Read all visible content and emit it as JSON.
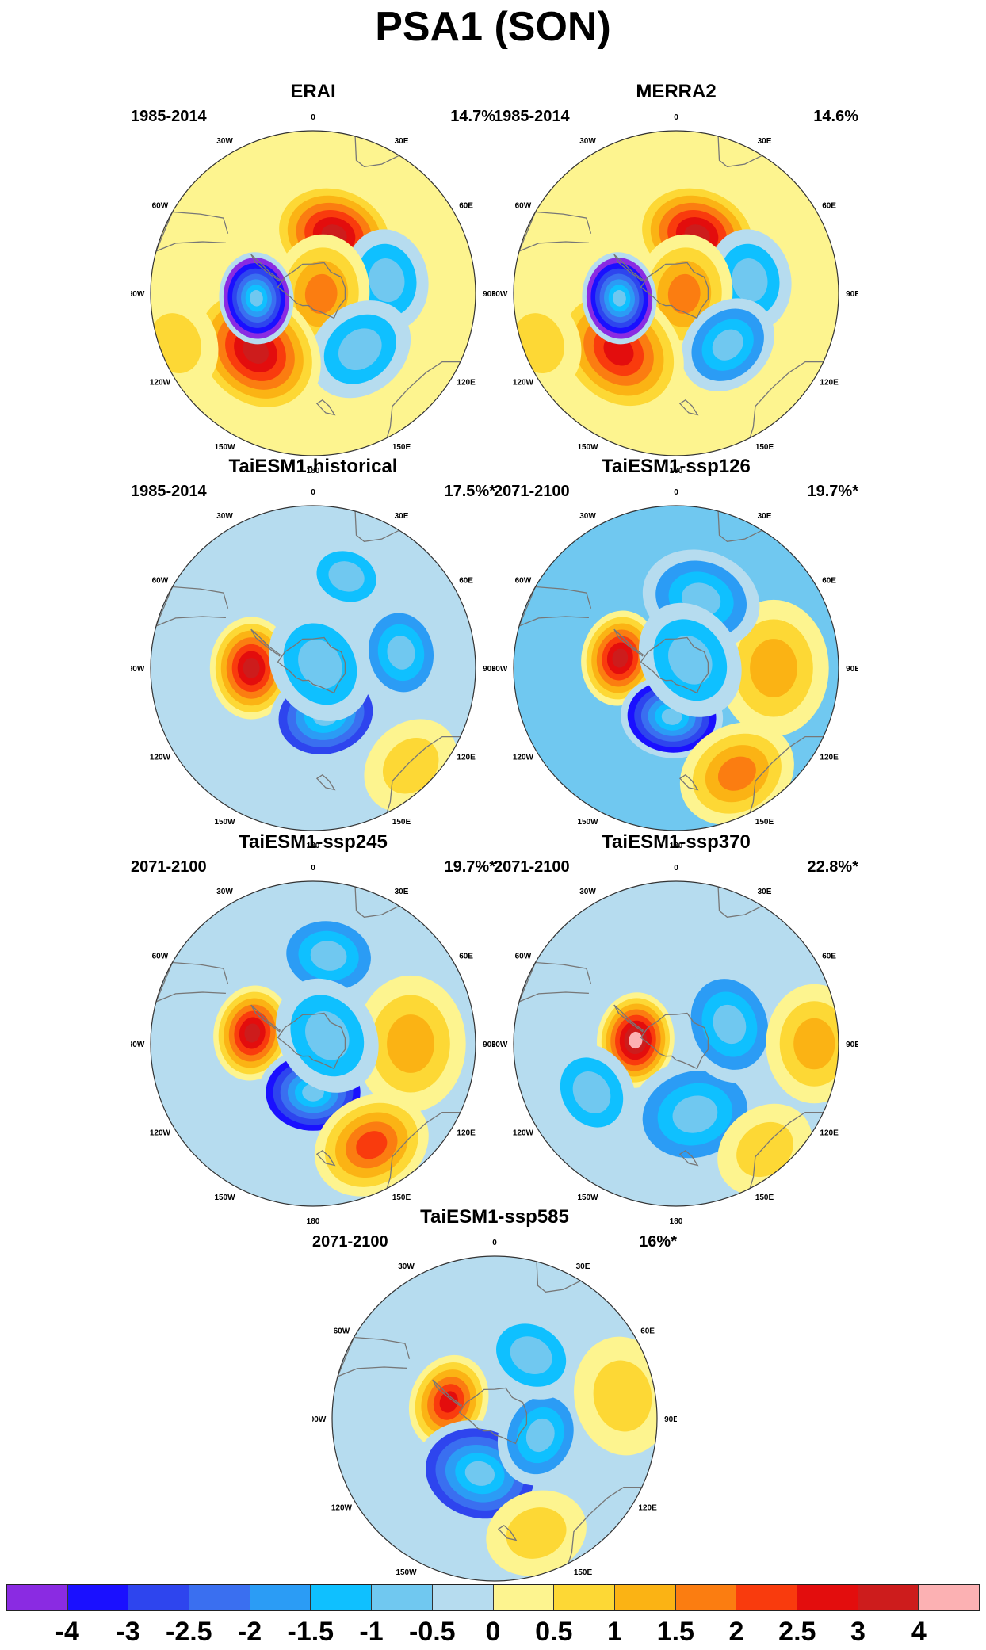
{
  "title": "PSA1 (SON)",
  "longitude_labels": [
    "0",
    "30E",
    "60E",
    "90E",
    "120E",
    "150E",
    "180",
    "150W",
    "120W",
    "90W",
    "60W",
    "30W"
  ],
  "panels": [
    {
      "name": "ERAI",
      "period": "1985-2014",
      "variance": "14.7%",
      "background": 0.3,
      "blobs": [
        {
          "lon": 20,
          "r": 0.38,
          "value": 3.0,
          "size": 0.38
        },
        {
          "lon": 80,
          "r": 0.46,
          "value": -1.2,
          "size": 0.3
        },
        {
          "lon": 95,
          "r": 0.05,
          "value": 1.5,
          "size": 0.35
        },
        {
          "lon": 140,
          "r": 0.45,
          "value": -1.0,
          "size": 0.32
        },
        {
          "lon": 225,
          "r": 0.5,
          "value": 3.0,
          "size": 0.42
        },
        {
          "lon": 265,
          "r": 0.35,
          "value": -4.0,
          "size": 0.27
        },
        {
          "lon": 250,
          "r": 0.9,
          "value": 0.8,
          "size": 0.3
        }
      ]
    },
    {
      "name": "MERRA2",
      "period": "1985-2014",
      "variance": "14.6%",
      "background": 0.3,
      "blobs": [
        {
          "lon": 20,
          "r": 0.38,
          "value": 3.0,
          "size": 0.38
        },
        {
          "lon": 80,
          "r": 0.46,
          "value": -1.2,
          "size": 0.3
        },
        {
          "lon": 95,
          "r": 0.05,
          "value": 1.5,
          "size": 0.35
        },
        {
          "lon": 135,
          "r": 0.45,
          "value": -1.5,
          "size": 0.3
        },
        {
          "lon": 225,
          "r": 0.5,
          "value": 2.5,
          "size": 0.42
        },
        {
          "lon": 265,
          "r": 0.35,
          "value": -4.0,
          "size": 0.27
        },
        {
          "lon": 250,
          "r": 0.9,
          "value": 0.8,
          "size": 0.3
        }
      ]
    },
    {
      "name": "TaiESM1-historical",
      "period": "1985-2014",
      "variance": "17.5%*",
      "background": -0.3,
      "blobs": [
        {
          "lon": 270,
          "r": 0.38,
          "value": 3.5,
          "size": 0.3
        },
        {
          "lon": 165,
          "r": 0.3,
          "value": -2.5,
          "size": 0.33
        },
        {
          "lon": 80,
          "r": 0.55,
          "value": -1.5,
          "size": 0.3
        },
        {
          "lon": 60,
          "r": 0.05,
          "value": -1.3,
          "size": 0.35
        },
        {
          "lon": 135,
          "r": 0.85,
          "value": 0.6,
          "size": 0.3
        },
        {
          "lon": 20,
          "r": 0.6,
          "value": -1.0,
          "size": 0.25
        }
      ]
    },
    {
      "name": "TaiESM1-ssp126",
      "period": "2071-2100",
      "variance": "19.7%*",
      "background": -0.6,
      "blobs": [
        {
          "lon": 280,
          "r": 0.35,
          "value": 3.5,
          "size": 0.28
        },
        {
          "lon": 185,
          "r": 0.3,
          "value": -3.5,
          "size": 0.3
        },
        {
          "lon": 90,
          "r": 0.6,
          "value": 1.2,
          "size": 0.4
        },
        {
          "lon": 150,
          "r": 0.75,
          "value": 1.8,
          "size": 0.35
        },
        {
          "lon": 20,
          "r": 0.45,
          "value": -1.5,
          "size": 0.35
        },
        {
          "lon": 60,
          "r": 0.1,
          "value": -1.3,
          "size": 0.35
        }
      ]
    },
    {
      "name": "TaiESM1-ssp245",
      "period": "2071-2100",
      "variance": "19.7%*",
      "background": -0.4,
      "blobs": [
        {
          "lon": 280,
          "r": 0.38,
          "value": 3.5,
          "size": 0.28
        },
        {
          "lon": 180,
          "r": 0.3,
          "value": -3.5,
          "size": 0.32
        },
        {
          "lon": 90,
          "r": 0.6,
          "value": 1.2,
          "size": 0.4
        },
        {
          "lon": 150,
          "r": 0.72,
          "value": 2.0,
          "size": 0.35
        },
        {
          "lon": 10,
          "r": 0.55,
          "value": -1.5,
          "size": 0.32
        },
        {
          "lon": 60,
          "r": 0.1,
          "value": -1.3,
          "size": 0.35
        }
      ]
    },
    {
      "name": "TaiESM1-ssp370",
      "period": "2071-2100",
      "variance": "22.8%*",
      "background": -0.4,
      "blobs": [
        {
          "lon": 275,
          "r": 0.25,
          "value": 4.0,
          "size": 0.28
        },
        {
          "lon": 165,
          "r": 0.45,
          "value": -1.8,
          "size": 0.4
        },
        {
          "lon": 70,
          "r": 0.35,
          "value": -1.5,
          "size": 0.35
        },
        {
          "lon": 90,
          "r": 0.85,
          "value": 1.4,
          "size": 0.35
        },
        {
          "lon": 140,
          "r": 0.85,
          "value": 0.9,
          "size": 0.3
        },
        {
          "lon": 240,
          "r": 0.6,
          "value": -1.3,
          "size": 0.3
        }
      ]
    },
    {
      "name": "TaiESM1-ssp585",
      "period": "2071-2100",
      "variance": "16%*",
      "background": -0.2,
      "blobs": [
        {
          "lon": 290,
          "r": 0.3,
          "value": 2.5,
          "size": 0.28
        },
        {
          "lon": 195,
          "r": 0.35,
          "value": -2.5,
          "size": 0.38
        },
        {
          "lon": 110,
          "r": 0.3,
          "value": -1.5,
          "size": 0.3
        },
        {
          "lon": 30,
          "r": 0.45,
          "value": -1.0,
          "size": 0.3
        },
        {
          "lon": 80,
          "r": 0.8,
          "value": 0.8,
          "size": 0.35
        },
        {
          "lon": 160,
          "r": 0.75,
          "value": 0.8,
          "size": 0.3
        }
      ]
    }
  ],
  "colorbar": {
    "labels": [
      "-4",
      "-3",
      "-2.5",
      "-2",
      "-1.5",
      "-1",
      "-0.5",
      "0",
      "0.5",
      "1",
      "1.5",
      "2",
      "2.5",
      "3",
      "4"
    ],
    "colors": [
      "#8a2be2",
      "#1a10ff",
      "#2e45ee",
      "#3a6ff0",
      "#2b9cf5",
      "#0fc0ff",
      "#70c8f0",
      "#b6dcef",
      "#fdf48f",
      "#fdd835",
      "#fbb314",
      "#fb7d11",
      "#f93b0d",
      "#e30d0d",
      "#cd1c1c",
      "#fcb1b3"
    ]
  }
}
